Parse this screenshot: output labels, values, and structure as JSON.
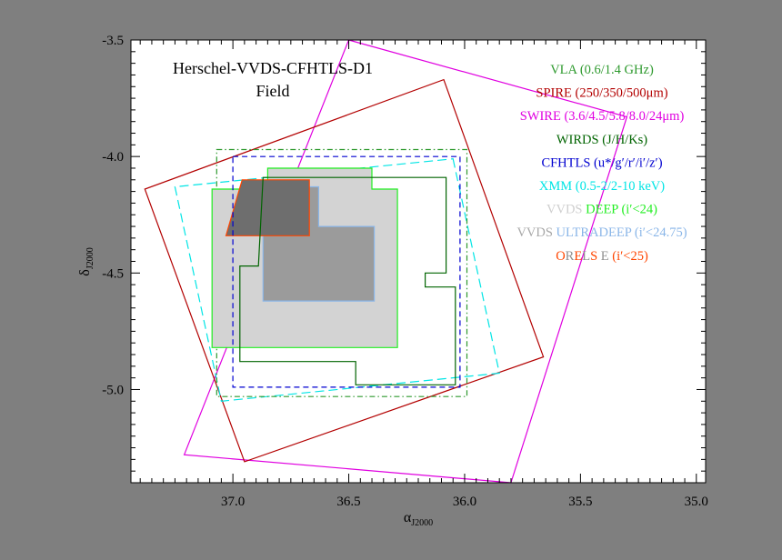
{
  "chart_data": {
    "type": "area",
    "title_lines": [
      "Herschel-VVDS-CFHTLS-D1",
      "Field"
    ],
    "xlabel_main": "α",
    "xlabel_sub": "J2000",
    "ylabel_main": "δ",
    "ylabel_sub": "J2000",
    "xlim": [
      37.44,
      34.96
    ],
    "ylim": [
      -5.4,
      -3.5
    ],
    "x_ticks": [
      37.0,
      36.5,
      36.0,
      35.5,
      35.0
    ],
    "x_tick_labels": [
      "37.0",
      "36.5",
      "36.0",
      "35.5",
      "35.0"
    ],
    "y_ticks": [
      -3.5,
      -4.0,
      -4.5,
      -5.0
    ],
    "y_tick_labels": [
      "-3.5",
      "-4.0",
      "-4.5",
      "-5.0"
    ],
    "grid": false,
    "legend_position": "top-right",
    "legend": [
      {
        "segments": [
          {
            "text": "VLA (0.6/1.4 GHz)",
            "color": "#2e9a2e"
          }
        ]
      },
      {
        "segments": [
          {
            "text": "SPIRE (250/350/500μm)",
            "color": "#b30000"
          }
        ]
      },
      {
        "segments": [
          {
            "text": "SWIRE (3.6/4.5/5.8/8.0/24μm)",
            "color": "#e000e0"
          }
        ]
      },
      {
        "segments": [
          {
            "text": "WIRDS (J/H/Ks)",
            "color": "#006400"
          }
        ]
      },
      {
        "segments": [
          {
            "text": "CFHTLS (u*/g′/r′/i′/z′)",
            "color": "#0000d0"
          }
        ]
      },
      {
        "segments": [
          {
            "text": "XMM (0.5-2/2-10 keV)",
            "color": "#00e5e5"
          }
        ]
      },
      {
        "segments": [
          {
            "text": "VVDS ",
            "color": "#cfcfcf"
          },
          {
            "text": "DEEP (i′<24)",
            "color": "#22ee22"
          }
        ]
      },
      {
        "segments": [
          {
            "text": "VVDS ",
            "color": "#a8a8a8"
          },
          {
            "text": "ULTRADEEP (i′<24.75)",
            "color": "#8ab6e8"
          }
        ]
      },
      {
        "segments": [
          {
            "text": "O",
            "color": "#ff4500"
          },
          {
            "text": "R",
            "color": "#909090"
          },
          {
            "text": "E",
            "color": "#ff4500"
          },
          {
            "text": "L",
            "color": "#909090"
          },
          {
            "text": "S",
            "color": "#ff4500"
          },
          {
            "text": " E ",
            "color": "#909090"
          },
          {
            "text": " (i′<25)",
            "color": "#ff4500"
          }
        ]
      }
    ],
    "series": [
      {
        "name": "SWIRE",
        "style": "solid",
        "stroke": "#e000e0",
        "fill": "none",
        "points": [
          [
            36.5,
            -3.5
          ],
          [
            35.3,
            -3.83
          ],
          [
            35.8,
            -5.4
          ],
          [
            37.21,
            -5.28
          ]
        ]
      },
      {
        "name": "SPIRE",
        "style": "solid",
        "stroke": "#b30000",
        "fill": "none",
        "points": [
          [
            36.09,
            -3.67
          ],
          [
            35.66,
            -4.86
          ],
          [
            36.95,
            -5.31
          ],
          [
            37.38,
            -4.14
          ]
        ]
      },
      {
        "name": "XMM",
        "style": "dash-long",
        "stroke": "#00e5e5",
        "fill": "none",
        "points": [
          [
            36.05,
            -4.01
          ],
          [
            35.85,
            -4.93
          ],
          [
            37.05,
            -5.05
          ],
          [
            37.25,
            -4.13
          ]
        ]
      },
      {
        "name": "VLA",
        "style": "dash-dot",
        "stroke": "#2e9a2e",
        "fill": "none",
        "points": [
          [
            37.07,
            -3.97
          ],
          [
            35.99,
            -3.97
          ],
          [
            35.99,
            -5.03
          ],
          [
            37.07,
            -5.03
          ]
        ]
      },
      {
        "name": "VVDS DEEP",
        "style": "solid",
        "stroke": "#22ee22",
        "fill": "#d3d3d3",
        "points": [
          [
            36.85,
            -4.05
          ],
          [
            36.4,
            -4.05
          ],
          [
            36.4,
            -4.14
          ],
          [
            36.29,
            -4.14
          ],
          [
            36.29,
            -4.82
          ],
          [
            37.09,
            -4.82
          ],
          [
            37.09,
            -4.14
          ],
          [
            36.85,
            -4.14
          ]
        ]
      },
      {
        "name": "VVDS ULTRADEEP",
        "style": "solid",
        "stroke": "#8ab6e8",
        "fill": "#9b9b9b",
        "points": [
          [
            36.87,
            -4.13
          ],
          [
            36.63,
            -4.13
          ],
          [
            36.63,
            -4.3
          ],
          [
            36.39,
            -4.3
          ],
          [
            36.39,
            -4.62
          ],
          [
            36.87,
            -4.62
          ]
        ]
      },
      {
        "name": "ORELSE",
        "style": "solid",
        "stroke": "#ff4500",
        "fill": "#6e6e6e",
        "points": [
          [
            36.96,
            -4.1
          ],
          [
            36.67,
            -4.1
          ],
          [
            36.67,
            -4.34
          ],
          [
            37.03,
            -4.34
          ]
        ]
      },
      {
        "name": "CFHTLS",
        "style": "dash",
        "stroke": "#0000d0",
        "fill": "none",
        "points": [
          [
            37.0,
            -4.0
          ],
          [
            36.02,
            -4.0
          ],
          [
            36.02,
            -4.99
          ],
          [
            37.0,
            -4.99
          ]
        ]
      },
      {
        "name": "WIRDS",
        "style": "solid",
        "stroke": "#006400",
        "fill": "none",
        "points": [
          [
            36.87,
            -4.09
          ],
          [
            36.08,
            -4.09
          ],
          [
            36.08,
            -4.5
          ],
          [
            36.17,
            -4.5
          ],
          [
            36.17,
            -4.56
          ],
          [
            36.04,
            -4.56
          ],
          [
            36.04,
            -4.98
          ],
          [
            36.47,
            -4.98
          ],
          [
            36.47,
            -4.88
          ],
          [
            36.97,
            -4.88
          ],
          [
            36.97,
            -4.47
          ],
          [
            36.89,
            -4.47
          ]
        ]
      }
    ]
  }
}
